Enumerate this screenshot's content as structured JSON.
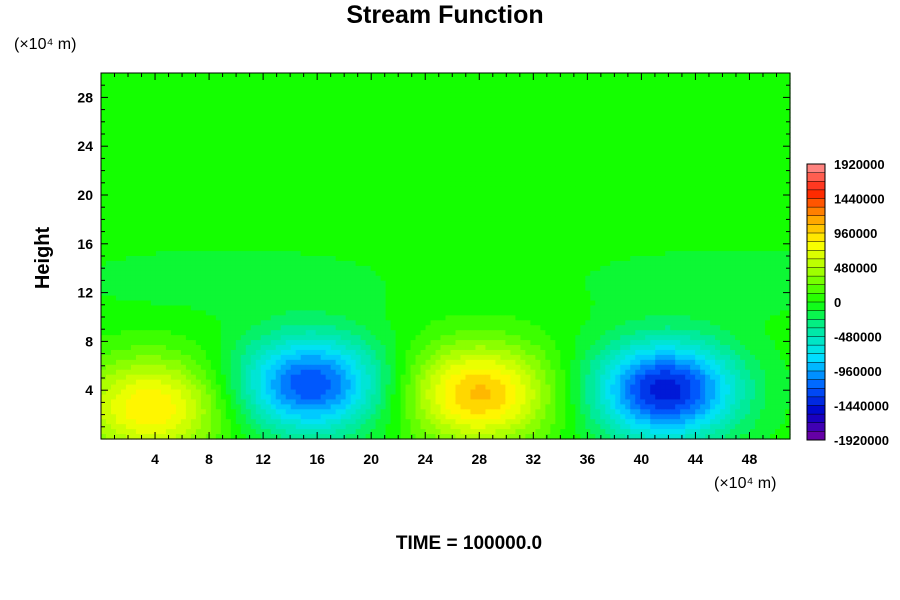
{
  "chart_data": {
    "type": "heatmap",
    "title": "Stream Function",
    "xlabel": "",
    "ylabel": "Height",
    "x_unit": "(×10⁴ m)",
    "y_unit": "(×10⁴ m)",
    "xlim": [
      0,
      51
    ],
    "ylim": [
      0,
      30
    ],
    "x_ticks": [
      4,
      8,
      12,
      16,
      20,
      24,
      28,
      32,
      36,
      40,
      44,
      48
    ],
    "y_ticks": [
      4,
      8,
      12,
      16,
      20,
      24,
      28
    ],
    "x_tick_labels": [
      "4",
      "8",
      "12",
      "16",
      "20",
      "24",
      "28",
      "32",
      "36",
      "40",
      "44",
      "48"
    ],
    "y_tick_labels": [
      "4",
      "8",
      "12",
      "16",
      "20",
      "24",
      "28"
    ],
    "colorbar": {
      "min": -1920000,
      "max": 1920000,
      "labels": [
        "1920000",
        "1440000",
        "960000",
        "480000",
        "0",
        "-480000",
        "-960000",
        "-1440000",
        "-1920000"
      ],
      "label_values": [
        1920000,
        1440000,
        960000,
        480000,
        0,
        -480000,
        -960000,
        -1440000,
        -1920000
      ]
    },
    "features": [
      {
        "kind": "max",
        "x": 3.7,
        "y": 2.6,
        "value": 900000
      },
      {
        "kind": "min",
        "x": 15.5,
        "y": 4.5,
        "value": -1250000
      },
      {
        "kind": "max",
        "x": 28.0,
        "y": 3.7,
        "value": 1050000
      },
      {
        "kind": "min",
        "x": 41.8,
        "y": 4.0,
        "value": -1450000
      }
    ],
    "footer": "TIME = 100000.0"
  }
}
